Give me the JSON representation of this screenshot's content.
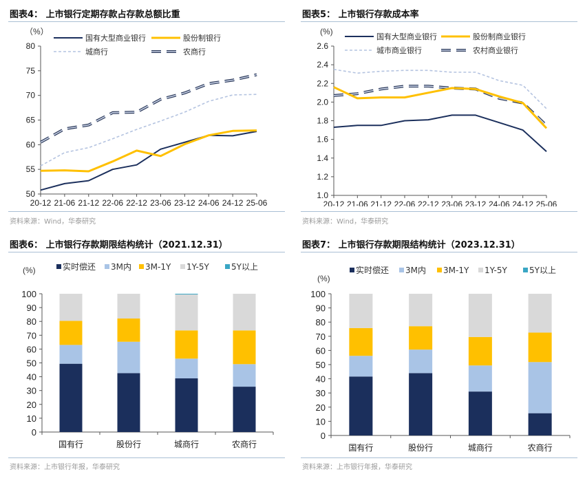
{
  "panels": [
    {
      "title": "图表4：  上市银行定期存款占存款总额比重",
      "source": "资料来源：Wind，华泰研究"
    },
    {
      "title": "图表5：  上市银行存款成本率",
      "source": "资料来源：Wind，华泰研究"
    },
    {
      "title": "图表6：  上市银行存款期限结构统计（2021.12.31）",
      "source": "资料来源：上市银行年报，华泰研究"
    },
    {
      "title": "图表7：  上市银行存款期限结构统计（2023.12.31）",
      "source": "资料来源：上市银行年报，华泰研究"
    }
  ],
  "colors": {
    "navy": "#1b2f5c",
    "yellow": "#ffc000",
    "lightblue": "#a9c4e6",
    "dashblue": "#b4c3e0",
    "grey": "#d9d9d9",
    "teal": "#3aa6c4",
    "rural_outline": "#2c3a5a",
    "rural_fill": "#c9d2e6"
  },
  "chart_data": [
    {
      "type": "line",
      "title": "上市银行定期存款占存款总额比重",
      "unit_label": "（%）",
      "xlabel": "",
      "ylabel": "%",
      "ylim": [
        50,
        80
      ],
      "yticks": [
        "50",
        "55",
        "60",
        "65",
        "70",
        "75",
        "80"
      ],
      "categories": [
        "20-12",
        "21-06",
        "21-12",
        "22-06",
        "22-12",
        "23-06",
        "23-12",
        "24-06",
        "24-12",
        "25-06"
      ],
      "legend": "top",
      "series": [
        {
          "name": "国有大型商业银行",
          "style": "solid-navy",
          "values": [
            50.8,
            52.1,
            52.7,
            55.0,
            55.9,
            59.1,
            60.5,
            61.9,
            61.8,
            62.7
          ]
        },
        {
          "name": "股份制银行",
          "style": "solid-yellow",
          "values": [
            54.7,
            54.8,
            54.6,
            56.6,
            58.8,
            57.7,
            60.1,
            61.9,
            62.8,
            62.9
          ]
        },
        {
          "name": "城商行",
          "style": "dotted-lightblue",
          "values": [
            55.7,
            58.4,
            59.4,
            61.2,
            63.1,
            64.8,
            66.6,
            68.8,
            70.1,
            70.2
          ]
        },
        {
          "name": "农商行",
          "style": "dashed-navy",
          "values": [
            60.5,
            63.2,
            64.0,
            66.5,
            66.6,
            69.2,
            70.5,
            72.4,
            73.1,
            74.2
          ]
        }
      ]
    },
    {
      "type": "line",
      "title": "上市银行存款成本率",
      "unit_label": "(%)",
      "xlabel": "",
      "ylabel": "%",
      "ylim": [
        1.0,
        2.6
      ],
      "yticks": [
        "1.0",
        "1.2",
        "1.4",
        "1.6",
        "1.8",
        "2.0",
        "2.2",
        "2.4",
        "2.6"
      ],
      "categories": [
        "20-12",
        "21-06",
        "21-12",
        "22-06",
        "22-12",
        "23-06",
        "23-12",
        "24-06",
        "24-12",
        "25-06"
      ],
      "legend": "top",
      "series": [
        {
          "name": "国有大型商业银行",
          "style": "solid-navy",
          "values": [
            1.73,
            1.75,
            1.75,
            1.8,
            1.81,
            1.86,
            1.86,
            1.78,
            1.7,
            1.47
          ]
        },
        {
          "name": "股份制商业银行",
          "style": "solid-yellow",
          "values": [
            2.16,
            2.04,
            2.05,
            2.05,
            2.1,
            2.15,
            2.14,
            2.06,
            1.99,
            1.72
          ]
        },
        {
          "name": "城市商业银行",
          "style": "dotted-lightblue",
          "values": [
            2.35,
            2.31,
            2.33,
            2.34,
            2.34,
            2.32,
            2.32,
            2.23,
            2.18,
            1.93
          ]
        },
        {
          "name": "农村商业银行",
          "style": "dashed-navy",
          "values": [
            2.07,
            2.09,
            2.14,
            2.17,
            2.17,
            2.15,
            2.14,
            2.04,
            1.99,
            1.75
          ]
        }
      ]
    },
    {
      "type": "bar",
      "stacked": true,
      "title": "上市银行存款期限结构统计（2021.12.31）",
      "unit_label": "(%)",
      "ylim": [
        0,
        100
      ],
      "yticks": [
        "0",
        "10",
        "20",
        "30",
        "40",
        "50",
        "60",
        "70",
        "80",
        "90",
        "100"
      ],
      "categories": [
        "国有行",
        "股份行",
        "城商行",
        "农商行"
      ],
      "legend": "top",
      "series": [
        {
          "name": "实时偿还",
          "color": "navy",
          "values": [
            49.4,
            42.6,
            38.8,
            32.8
          ]
        },
        {
          "name": "3M内",
          "color": "lightblue",
          "values": [
            13.6,
            22.7,
            14.3,
            16.3
          ]
        },
        {
          "name": "3M-1Y",
          "color": "yellow",
          "values": [
            17.4,
            16.8,
            20.4,
            24.4
          ]
        },
        {
          "name": "1Y-5Y",
          "color": "grey",
          "values": [
            19.6,
            17.9,
            26.0,
            26.5
          ]
        },
        {
          "name": "5Y以上",
          "color": "teal",
          "values": [
            0.0,
            0.0,
            0.5,
            0.0
          ]
        }
      ]
    },
    {
      "type": "bar",
      "stacked": true,
      "title": "上市银行存款期限结构统计（2023.12.31）",
      "unit_label": "(%)",
      "ylim": [
        0,
        100
      ],
      "yticks": [
        "0",
        "10",
        "20",
        "30",
        "40",
        "50",
        "60",
        "70",
        "80",
        "90",
        "100"
      ],
      "categories": [
        "国有行",
        "股份行",
        "城商行",
        "农商行"
      ],
      "legend": "top",
      "series": [
        {
          "name": "实时偿还",
          "color": "navy",
          "values": [
            41.6,
            44.0,
            31.0,
            15.7
          ]
        },
        {
          "name": "3M内",
          "color": "lightblue",
          "values": [
            14.6,
            16.6,
            18.4,
            36.1
          ]
        },
        {
          "name": "3M-1Y",
          "color": "yellow",
          "values": [
            19.6,
            16.5,
            20.1,
            20.8
          ]
        },
        {
          "name": "1Y-5Y",
          "color": "grey",
          "values": [
            24.2,
            22.9,
            30.5,
            27.4
          ]
        },
        {
          "name": "5Y以上",
          "color": "teal",
          "values": [
            0.0,
            0.0,
            0.0,
            0.0
          ]
        }
      ]
    }
  ]
}
